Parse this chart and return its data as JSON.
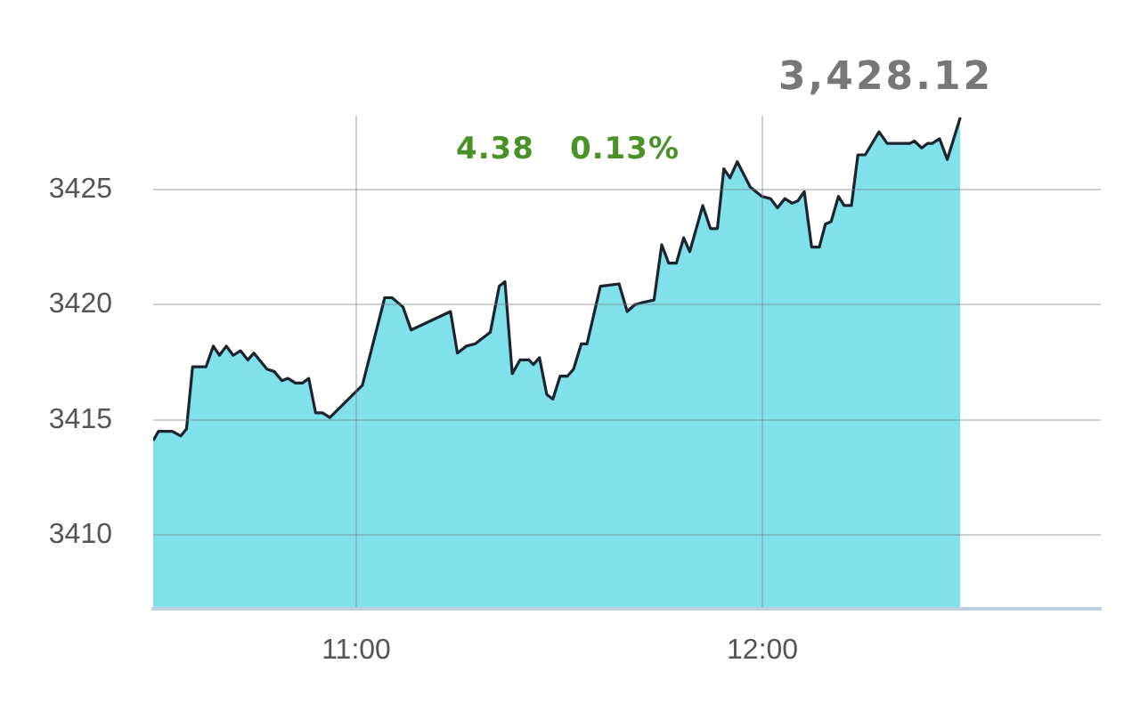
{
  "chart_data": {
    "type": "area",
    "annotations": [
      "3,428.12",
      "4.38",
      "0.13%"
    ],
    "x": [
      10.5,
      10.513,
      10.547,
      10.568,
      10.582,
      10.597,
      10.63,
      10.648,
      10.663,
      10.68,
      10.697,
      10.715,
      10.733,
      10.748,
      10.78,
      10.798,
      10.817,
      10.832,
      10.85,
      10.868,
      10.883,
      10.9,
      10.917,
      10.935,
      11.015,
      11.07,
      11.088,
      11.115,
      11.135,
      11.232,
      11.249,
      11.271,
      11.293,
      11.33,
      11.352,
      11.366,
      11.384,
      11.403,
      11.425,
      11.436,
      11.451,
      11.469,
      11.484,
      11.502,
      11.52,
      11.535,
      11.554,
      11.568,
      11.601,
      11.647,
      11.667,
      11.686,
      11.706,
      11.733,
      11.752,
      11.769,
      11.788,
      11.806,
      11.821,
      11.853,
      11.872,
      11.889,
      11.905,
      11.92,
      11.938,
      11.97,
      11.998,
      12.02,
      12.037,
      12.055,
      12.073,
      12.087,
      12.103,
      12.121,
      12.14,
      12.155,
      12.169,
      12.187,
      12.201,
      12.219,
      12.235,
      12.253,
      12.287,
      12.307,
      12.363,
      12.374,
      12.392,
      12.407,
      12.418,
      12.436,
      12.455,
      12.487
    ],
    "values": [
      3414.1,
      3414.5,
      3414.5,
      3414.3,
      3414.6,
      3417.3,
      3417.3,
      3418.2,
      3417.8,
      3418.2,
      3417.8,
      3418.0,
      3417.6,
      3417.9,
      3417.2,
      3417.1,
      3416.7,
      3416.8,
      3416.6,
      3416.6,
      3416.8,
      3415.3,
      3415.3,
      3415.1,
      3416.5,
      3420.3,
      3420.3,
      3419.9,
      3418.9,
      3419.7,
      3417.9,
      3418.2,
      3418.3,
      3418.8,
      3420.8,
      3421.0,
      3417.0,
      3417.6,
      3417.6,
      3417.4,
      3417.7,
      3416.1,
      3415.9,
      3416.9,
      3416.9,
      3417.2,
      3418.3,
      3418.3,
      3420.8,
      3420.9,
      3419.7,
      3420.0,
      3420.1,
      3420.2,
      3422.6,
      3421.8,
      3421.8,
      3422.9,
      3422.3,
      3424.3,
      3423.3,
      3423.3,
      3425.9,
      3425.5,
      3426.2,
      3425.1,
      3424.7,
      3424.6,
      3424.2,
      3424.6,
      3424.4,
      3424.5,
      3424.9,
      3422.5,
      3422.5,
      3423.5,
      3423.6,
      3424.7,
      3424.3,
      3424.3,
      3426.5,
      3426.5,
      3427.5,
      3427.0,
      3427.0,
      3427.1,
      3426.8,
      3427.0,
      3427.0,
      3427.2,
      3426.3,
      3428.12
    ],
    "color": "#80e1ea",
    "xlim": [
      10.5,
      12.833
    ],
    "xticks": [
      {
        "value": 11,
        "label": "11:00"
      },
      {
        "value": 12,
        "label": "12:00"
      }
    ],
    "ylim": [
      3406.8,
      3428.2
    ],
    "yticks": [
      3410,
      3415,
      3420,
      3425
    ],
    "grid": true,
    "marker": "none",
    "legend": false
  }
}
